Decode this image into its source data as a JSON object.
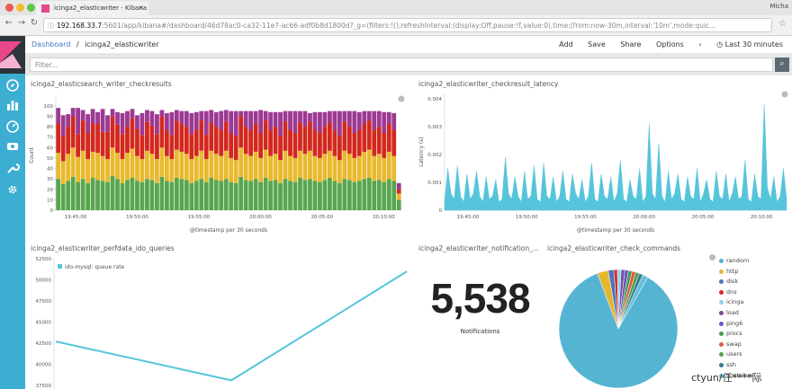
{
  "browser": {
    "tab_title": "icinga2_elasticwriter - Kibana",
    "tab_close": "×",
    "profile": "Micha",
    "url_host": "192.168.33.7",
    "url_rest": ":5601/app/kibana#/dashboard/46d78ac0-ca32-11e7-ac66-adf0b8d1800d?_g=(filters:!(),refreshInterval:(display:Off,pause:!f,value:0),time:(from:now-30m,interval:'10m',mode:quic..."
  },
  "header": {
    "crumb_root": "Dashboard",
    "crumb_sep": "/",
    "crumb_current": "icinga2_elasticwriter",
    "menu": [
      "Add",
      "Save",
      "Share",
      "Options"
    ],
    "time_prev": "‹",
    "time_range": "◷ Last 30 minutes"
  },
  "search": {
    "placeholder": "Filter...",
    "button_icon": "search-icon"
  },
  "panels": {
    "p1_title": "icinga2_elasticsearch_writer_checkresults",
    "p2_title": "icinga2_elasticwriter_checkresult_latency",
    "p3_title": "icinga2_elasticwriter_perfdata_ido_queries",
    "p4_title": "icinga2_elasticwriter_notification_...",
    "p5_title": "icinga2_elasticwriter_check_commands"
  },
  "metric": {
    "value": "5,538",
    "label": "Notifications"
  },
  "chart_data": [
    {
      "type": "bar",
      "stacked": true,
      "ylabel": "Count",
      "xlabel": "@timestamp per 30 seconds",
      "yticks": [
        "0",
        "10",
        "20",
        "30",
        "40",
        "50",
        "60",
        "70",
        "80",
        "90",
        "100"
      ],
      "ylim": [
        0,
        105
      ],
      "xticks": [
        "19:45:00",
        "19:50:00",
        "19:55:00",
        "20:00:00",
        "20:05:00",
        "20:10:00"
      ],
      "series_colors": [
        "#57a64f",
        "#e9b92e",
        "#d3281e",
        "#9c3a92"
      ],
      "series": [
        {
          "values": [
            30,
            25,
            28,
            32,
            27,
            30,
            26,
            31,
            29,
            28,
            27,
            33,
            30,
            26,
            29,
            31,
            28,
            27,
            30,
            29,
            26,
            32,
            28,
            27,
            31,
            30,
            29,
            26,
            28,
            30,
            27,
            31,
            29,
            28,
            30,
            27,
            26,
            32,
            29,
            28,
            30,
            27,
            31,
            28,
            29,
            26,
            30,
            28,
            27,
            31,
            29,
            30,
            28,
            27,
            29,
            31,
            28,
            26,
            30,
            29,
            27,
            28,
            30,
            31,
            28,
            29,
            27,
            30,
            28,
            10
          ]
        },
        {
          "values": [
            25,
            22,
            26,
            28,
            24,
            27,
            23,
            25,
            26,
            24,
            22,
            27,
            25,
            23,
            26,
            28,
            24,
            22,
            27,
            25,
            23,
            28,
            24,
            22,
            27,
            26,
            25,
            23,
            24,
            27,
            22,
            26,
            25,
            24,
            27,
            23,
            22,
            28,
            25,
            24,
            26,
            23,
            27,
            24,
            25,
            22,
            27,
            24,
            23,
            26,
            25,
            27,
            24,
            23,
            25,
            26,
            24,
            22,
            27,
            25,
            23,
            24,
            26,
            27,
            24,
            25,
            23,
            26,
            24,
            6
          ]
        },
        {
          "values": [
            28,
            24,
            26,
            30,
            22,
            29,
            25,
            27,
            28,
            23,
            26,
            30,
            27,
            24,
            25,
            29,
            26,
            23,
            28,
            27,
            24,
            30,
            25,
            23,
            28,
            27,
            26,
            24,
            25,
            29,
            23,
            27,
            26,
            25,
            28,
            24,
            23,
            30,
            26,
            25,
            27,
            24,
            28,
            25,
            26,
            23,
            28,
            25,
            24,
            27,
            26,
            28,
            25,
            24,
            26,
            27,
            25,
            23,
            28,
            26,
            24,
            25,
            27,
            28,
            25,
            26,
            24,
            27,
            25,
            4
          ]
        },
        {
          "values": [
            15,
            20,
            12,
            8,
            25,
            10,
            18,
            14,
            11,
            22,
            16,
            7,
            12,
            20,
            15,
            9,
            13,
            21,
            11,
            14,
            19,
            6,
            16,
            22,
            10,
            12,
            15,
            20,
            17,
            9,
            23,
            12,
            14,
            18,
            11,
            21,
            24,
            5,
            15,
            18,
            12,
            22,
            9,
            17,
            14,
            23,
            10,
            18,
            21,
            11,
            15,
            8,
            17,
            20,
            14,
            11,
            18,
            24,
            10,
            15,
            21,
            17,
            12,
            9,
            18,
            15,
            20,
            11,
            16,
            6
          ]
        }
      ]
    },
    {
      "type": "area",
      "ylabel": "Latency (s)",
      "xlabel": "@timestamp per 30 seconds",
      "yticks": [
        "0",
        "0.001",
        "0.002",
        "0.003",
        "0.004"
      ],
      "ylim": [
        0,
        0.0042
      ],
      "xticks": [
        "19:45:00",
        "19:50:00",
        "19:55:00",
        "20:00:00",
        "20:05:00",
        "20:10:00"
      ],
      "color": "#56c5dc",
      "values": [
        0.0003,
        0.0015,
        0.0006,
        0.0004,
        0.0016,
        0.0005,
        0.0003,
        0.0013,
        0.0004,
        0.0006,
        0.0014,
        0.0005,
        0.0003,
        0.0012,
        0.0004,
        0.0005,
        0.0011,
        0.0003,
        0.0004,
        0.0019,
        0.0006,
        0.0004,
        0.0012,
        0.0005,
        0.0003,
        0.0014,
        0.0004,
        0.0005,
        0.0016,
        0.0004,
        0.0003,
        0.0017,
        0.0005,
        0.0004,
        0.0012,
        0.0003,
        0.0005,
        0.0014,
        0.0004,
        0.0003,
        0.0013,
        0.0006,
        0.0004,
        0.0011,
        0.0003,
        0.0005,
        0.0017,
        0.0004,
        0.0003,
        0.0013,
        0.0005,
        0.0004,
        0.0012,
        0.0003,
        0.0006,
        0.0018,
        0.0004,
        0.0003,
        0.0011,
        0.0005,
        0.0004,
        0.0015,
        0.0003,
        0.0005,
        0.0031,
        0.0006,
        0.0004,
        0.0024,
        0.0005,
        0.0003,
        0.0014,
        0.0004,
        0.0006,
        0.0013,
        0.0004,
        0.0003,
        0.0012,
        0.0005,
        0.0004,
        0.0015,
        0.0003,
        0.0006,
        0.0011,
        0.0004,
        0.0003,
        0.0014,
        0.0005,
        0.0004,
        0.0013,
        0.0003,
        0.0006,
        0.0012,
        0.0004,
        0.0005,
        0.0018,
        0.0004,
        0.0003,
        0.0013,
        0.0005,
        0.0004,
        0.0038,
        0.0008,
        0.0004,
        0.0012,
        0.0003,
        0.0005,
        0.0015,
        0.0004
      ]
    },
    {
      "type": "line",
      "yticks": [
        "37500",
        "40000",
        "42500",
        "45000",
        "47500",
        "50000",
        "52500"
      ],
      "ylim": [
        37500,
        52500
      ],
      "legend": "ido-mysql: queue rate",
      "color": "#56c5dc",
      "x": [
        0,
        1,
        2
      ],
      "values": [
        42700,
        38100,
        51000
      ]
    },
    {
      "type": "pie",
      "legend": [
        "random",
        "http",
        "disk",
        "dns",
        "icinga",
        "load",
        "ping6",
        "procs",
        "swap",
        "users",
        "ssh",
        "hostalive"
      ],
      "colors": [
        "#56b4d3",
        "#e5b72f",
        "#4a71c4",
        "#d0302a",
        "#8ed2e5",
        "#7a4a9e",
        "#6a54c6",
        "#3f9f4a",
        "#e0584a",
        "#55a048",
        "#2f7f8f",
        "#6bbddd"
      ],
      "values": [
        86,
        3,
        1.5,
        1,
        1,
        1,
        1,
        1,
        1,
        1,
        1,
        1.5
      ]
    }
  ],
  "watermark": "ctyun/任****际"
}
